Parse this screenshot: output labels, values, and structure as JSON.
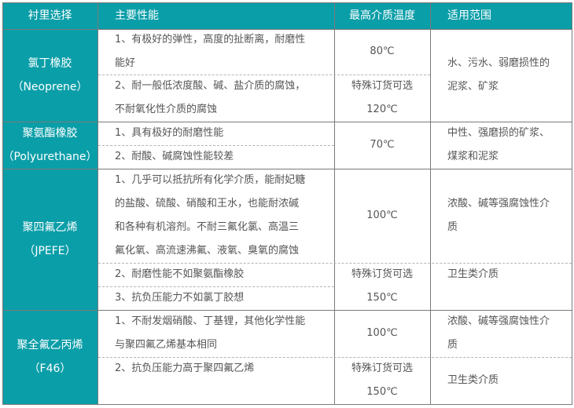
{
  "header": {
    "col1": "衬里选择",
    "col2": "主要性能",
    "col3": "最高介质温度",
    "col4": "适用范围"
  },
  "rows": [
    {
      "name": [
        "氯丁橡胶",
        "（Neoprene）"
      ],
      "props": [
        [
          "1、有极好的弹性，高度的扯断离，耐磨性",
          "能好"
        ],
        [
          "2、耐一般低浓度酸、碱、盐介质的腐蚀，",
          "不耐氧化性介质的腐蚀"
        ]
      ],
      "temps": [
        [
          "80℃"
        ],
        [
          "特殊订货可选",
          "120℃"
        ]
      ],
      "uses": [
        [
          "水、污水、弱磨损性的",
          "泥浆、矿浆"
        ]
      ]
    },
    {
      "name": [
        "聚氨酯橡胶",
        "（Polyurethane）"
      ],
      "props": [
        [
          "1、具有极好的耐磨性能"
        ],
        [
          "2、耐酸、碱腐蚀性能较差"
        ]
      ],
      "temps": [
        [
          "70℃"
        ]
      ],
      "uses": [
        [
          "中性、强磨损的矿浆、",
          "煤浆和泥浆"
        ]
      ]
    },
    {
      "name": [
        "聚四氟乙烯",
        "（JPEFE）"
      ],
      "props": [
        [
          "1、几乎可以抵抗所有化学介质，能耐妃糖",
          "的盐酸、硫酸、硝酸和王水，也能耐浓碱",
          "和各种有机溶剂。不耐三氟化氯、高温三",
          "氟化氧、高流速沸氟、液氧、臭氧的腐蚀"
        ],
        [
          "2、耐磨性能不如聚氨酯橡胶"
        ],
        [
          "3、抗负压能力不如氯丁胶想"
        ]
      ],
      "temps": [
        [
          "100℃"
        ],
        [
          "特殊订货可选",
          "150℃"
        ]
      ],
      "uses": [
        [
          "浓酸、碱等强腐蚀性介",
          "质"
        ],
        [
          "卫生类介质"
        ]
      ]
    },
    {
      "name": [
        "聚全氟乙丙烯",
        "（F46）"
      ],
      "props": [
        [
          "1、不耐发烟硝酸、丁基锂，其他化学性能",
          "与聚四氟乙烯基本相同"
        ],
        [
          "2、抗负压能力高于聚四氟乙烯"
        ]
      ],
      "temps": [
        [
          "100℃"
        ],
        [
          "特殊订货可选",
          "150℃"
        ]
      ],
      "uses": [
        [
          "浓酸、碱等强腐蚀性介",
          "质"
        ],
        [
          "卫生类介质"
        ]
      ]
    }
  ],
  "colors": {
    "accent": "#0a9ea8",
    "text": "#555555",
    "border": "#7a7a7a"
  }
}
